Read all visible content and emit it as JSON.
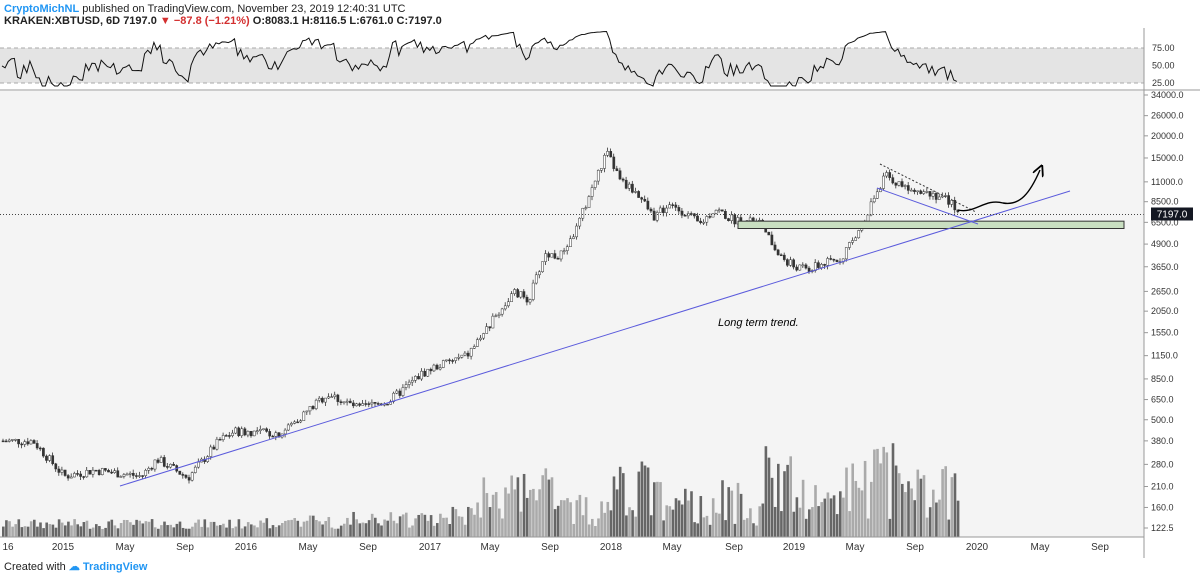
{
  "header": {
    "author": "CryptoMichNL",
    "published_text": "published on TradingView.com, November 23, 2019 12:40:31 UTC",
    "symbol": "KRAKEN:XBTUSD, 6D",
    "last": "7197.0",
    "change_arrow": "▼",
    "change": "−87.8 (−1.21%)",
    "open": "O:8083.1",
    "high": "H:8116.5",
    "low": "L:6761.0",
    "close": "C:7197.0"
  },
  "footer": {
    "created_with": "Created with",
    "brand": "TradingView"
  },
  "chart_data": {
    "type": "candlestick",
    "price_axis_ticks": [
      "34000.0",
      "26000.0",
      "20000.0",
      "15000.0",
      "11000.0",
      "8500.0",
      "6500.0",
      "4900.0",
      "3650.0",
      "2650.0",
      "2050.0",
      "1550.0",
      "1150.0",
      "850.0",
      "650.0",
      "500.0",
      "380.0",
      "280.0",
      "210.0",
      "160.0",
      "122.5"
    ],
    "rsi_axis_ticks": [
      "75.00",
      "50.00",
      "25.00"
    ],
    "x_axis_ticks": [
      "16",
      "2015",
      "May",
      "Sep",
      "2016",
      "May",
      "Sep",
      "2017",
      "May",
      "Sep",
      "2018",
      "May",
      "Sep",
      "2019",
      "May",
      "Sep",
      "2020",
      "May",
      "Sep"
    ],
    "current_price_label": "7197.0",
    "annotation": "Long term trend.",
    "price_key_points": [
      {
        "date": "2014-11",
        "price": 380
      },
      {
        "date": "2015-01",
        "price": 240
      },
      {
        "date": "2015-03",
        "price": 260
      },
      {
        "date": "2015-06",
        "price": 240
      },
      {
        "date": "2015-07",
        "price": 300
      },
      {
        "date": "2015-09",
        "price": 235
      },
      {
        "date": "2015-11",
        "price": 380
      },
      {
        "date": "2015-12",
        "price": 430
      },
      {
        "date": "2016-03",
        "price": 420
      },
      {
        "date": "2016-06",
        "price": 700
      },
      {
        "date": "2016-08",
        "price": 580
      },
      {
        "date": "2016-10",
        "price": 640
      },
      {
        "date": "2016-12",
        "price": 900
      },
      {
        "date": "2017-01",
        "price": 1000
      },
      {
        "date": "2017-03",
        "price": 1150
      },
      {
        "date": "2017-05",
        "price": 2000
      },
      {
        "date": "2017-06",
        "price": 2600
      },
      {
        "date": "2017-07",
        "price": 2400
      },
      {
        "date": "2017-08",
        "price": 4300
      },
      {
        "date": "2017-09",
        "price": 4200
      },
      {
        "date": "2017-10",
        "price": 5800
      },
      {
        "date": "2017-11",
        "price": 9800
      },
      {
        "date": "2017-12",
        "price": 16000
      },
      {
        "date": "2018-01",
        "price": 11000
      },
      {
        "date": "2018-02",
        "price": 9500
      },
      {
        "date": "2018-03",
        "price": 7000
      },
      {
        "date": "2018-04",
        "price": 8000
      },
      {
        "date": "2018-05",
        "price": 7500
      },
      {
        "date": "2018-06",
        "price": 6300
      },
      {
        "date": "2018-07",
        "price": 7800
      },
      {
        "date": "2018-08",
        "price": 6800
      },
      {
        "date": "2018-10",
        "price": 6400
      },
      {
        "date": "2018-11",
        "price": 4300
      },
      {
        "date": "2018-12",
        "price": 3700
      },
      {
        "date": "2019-01",
        "price": 3500
      },
      {
        "date": "2019-02",
        "price": 3800
      },
      {
        "date": "2019-03",
        "price": 4000
      },
      {
        "date": "2019-04",
        "price": 5200
      },
      {
        "date": "2019-05",
        "price": 8000
      },
      {
        "date": "2019-06",
        "price": 12000
      },
      {
        "date": "2019-07",
        "price": 10500
      },
      {
        "date": "2019-08",
        "price": 10200
      },
      {
        "date": "2019-09",
        "price": 9500
      },
      {
        "date": "2019-10",
        "price": 8700
      },
      {
        "date": "2019-11",
        "price": 7197
      }
    ],
    "rsi_range": [
      25,
      75
    ],
    "log_scale": true,
    "support_zone": {
      "low": 6000,
      "high": 6600
    }
  }
}
